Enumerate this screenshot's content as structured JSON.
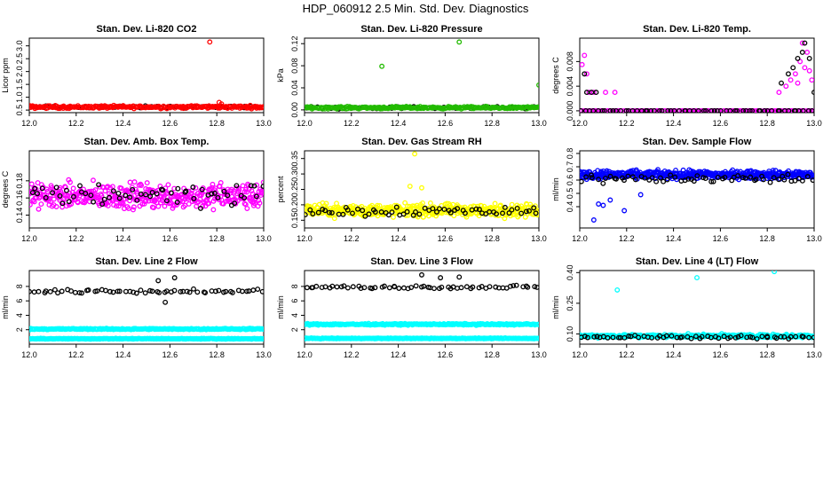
{
  "title": "HDP_060912  2.5 Min. Std. Dev. Diagnostics",
  "colors": {
    "red": "#ff0000",
    "green": "#22bb00",
    "magenta": "#ff00ff",
    "yellow": "#ffff00",
    "blue": "#0000ff",
    "cyan": "#00ffff",
    "black": "#000000"
  },
  "chart_data": [
    {
      "type": "scatter",
      "title": "Stan. Dev. Li-820 CO2",
      "xlabel": "",
      "ylabel": "Licor ppm",
      "xlim": [
        12.0,
        13.0
      ],
      "ylim": [
        0.4,
        3.3
      ],
      "xticks": [
        "12.0",
        "12.2",
        "12.4",
        "12.6",
        "12.8",
        "13.0"
      ],
      "yticks": [
        "0.5",
        "1.0",
        "1.5",
        "2.0",
        "2.5",
        "3.0"
      ],
      "series": [
        {
          "name": "black",
          "color": "black",
          "count": 60,
          "base": 0.62,
          "spread": 0.06
        },
        {
          "name": "red",
          "color": "red",
          "count": 240,
          "base": 0.62,
          "spread": 0.08,
          "extra": [
            [
              12.77,
              3.15
            ],
            [
              12.81,
              0.8
            ],
            [
              12.82,
              0.74
            ]
          ]
        }
      ]
    },
    {
      "type": "scatter",
      "title": "Stan. Dev. Li-820 Pressure",
      "xlabel": "",
      "ylabel": "kPa",
      "xlim": [
        12.0,
        13.0
      ],
      "ylim": [
        -0.005,
        0.13
      ],
      "xticks": [
        "12.0",
        "12.2",
        "12.4",
        "12.6",
        "12.8",
        "13.0"
      ],
      "yticks": [
        "0.00",
        "0.04",
        "0.08",
        "0.12"
      ],
      "series": [
        {
          "name": "black",
          "color": "black",
          "count": 60,
          "base": 0.004,
          "spread": 0.003
        },
        {
          "name": "green",
          "color": "green",
          "count": 240,
          "base": 0.004,
          "spread": 0.003,
          "extra": [
            [
              12.33,
              0.079
            ],
            [
              12.66,
              0.123
            ],
            [
              13.0,
              0.045
            ]
          ]
        }
      ]
    },
    {
      "type": "scatter",
      "title": "Stan. Dev. Li-820 Temp.",
      "xlabel": "",
      "ylabel": "degrees C",
      "xlim": [
        12.0,
        13.0
      ],
      "ylim": [
        -0.0003,
        0.0118
      ],
      "xticks": [
        "12.0",
        "12.2",
        "12.4",
        "12.6",
        "12.8",
        "13.0"
      ],
      "yticks": [
        "0.000",
        "0.004",
        "0.008"
      ],
      "series": [
        {
          "name": "magenta",
          "color": "magenta",
          "count": 140,
          "base": 0.0,
          "spread": 0.0,
          "extra": [
            [
              12.01,
              0.0075
            ],
            [
              12.02,
              0.009
            ],
            [
              12.03,
              0.006
            ],
            [
              12.04,
              0.003
            ],
            [
              12.06,
              0.003
            ],
            [
              12.11,
              0.003
            ],
            [
              12.15,
              0.003
            ],
            [
              12.85,
              0.003
            ],
            [
              12.88,
              0.004
            ],
            [
              12.9,
              0.005
            ],
            [
              12.92,
              0.006
            ],
            [
              12.94,
              0.008
            ],
            [
              12.95,
              0.011
            ],
            [
              12.97,
              0.0095
            ],
            [
              12.96,
              0.007
            ],
            [
              12.98,
              0.0065
            ],
            [
              12.93,
              0.0045
            ],
            [
              12.99,
              0.005
            ]
          ]
        },
        {
          "name": "black",
          "color": "black",
          "count": 60,
          "base": 0.0,
          "spread": 0.0,
          "extra": [
            [
              12.02,
              0.006
            ],
            [
              12.03,
              0.003
            ],
            [
              12.05,
              0.003
            ],
            [
              12.07,
              0.003
            ],
            [
              12.86,
              0.0045
            ],
            [
              12.89,
              0.006
            ],
            [
              12.91,
              0.007
            ],
            [
              12.93,
              0.0085
            ],
            [
              12.95,
              0.0095
            ],
            [
              12.96,
              0.011
            ],
            [
              12.98,
              0.0085
            ],
            [
              13.0,
              0.003
            ]
          ]
        }
      ]
    },
    {
      "type": "scatter",
      "title": "Stan. Dev. Amb. Box Temp.",
      "xlabel": "",
      "ylabel": "degrees C",
      "xlim": [
        12.0,
        13.0
      ],
      "ylim": [
        0.125,
        0.215
      ],
      "xticks": [
        "12.0",
        "12.2",
        "12.4",
        "12.6",
        "12.8",
        "13.0"
      ],
      "yticks": [
        "0.14",
        "0.16",
        "0.18"
      ],
      "series": [
        {
          "name": "magenta",
          "color": "magenta",
          "count": 420,
          "base": 0.162,
          "spread": 0.022
        },
        {
          "name": "black",
          "color": "black",
          "count": 60,
          "base": 0.165,
          "spread": 0.022
        }
      ]
    },
    {
      "type": "scatter",
      "title": "Stan. Dev. Gas Stream RH",
      "xlabel": "",
      "ylabel": "percent",
      "xlim": [
        12.0,
        13.0
      ],
      "ylim": [
        0.125,
        0.375
      ],
      "xticks": [
        "12.0",
        "12.2",
        "12.4",
        "12.6",
        "12.8",
        "13.0"
      ],
      "yticks": [
        "0.15",
        "0.20",
        "0.25",
        "0.30",
        "0.35"
      ],
      "series": [
        {
          "name": "yellow",
          "color": "yellow",
          "count": 420,
          "base": 0.182,
          "spread": 0.03,
          "extra": [
            [
              12.47,
              0.365
            ],
            [
              12.45,
              0.26
            ],
            [
              12.5,
              0.255
            ]
          ]
        },
        {
          "name": "black",
          "color": "black",
          "count": 60,
          "base": 0.18,
          "spread": 0.025
        }
      ]
    },
    {
      "type": "scatter",
      "title": "Stan. Dev. Sample Flow",
      "xlabel": "",
      "ylabel": "ml/min",
      "xlim": [
        12.0,
        13.0
      ],
      "ylim": [
        0.24,
        0.82
      ],
      "xticks": [
        "12.0",
        "12.2",
        "12.4",
        "12.6",
        "12.8",
        "13.0"
      ],
      "yticks": [
        "0.4",
        "0.5",
        "0.6",
        "0.7",
        "0.8"
      ],
      "series": [
        {
          "name": "blue",
          "color": "blue",
          "count": 460,
          "base": 0.64,
          "spread": 0.045,
          "extra": [
            [
              12.06,
              0.3
            ],
            [
              12.1,
              0.41
            ],
            [
              12.13,
              0.45
            ],
            [
              12.19,
              0.37
            ],
            [
              12.26,
              0.49
            ],
            [
              12.08,
              0.42
            ]
          ]
        },
        {
          "name": "black",
          "color": "black",
          "count": 60,
          "base": 0.61,
          "spread": 0.05
        }
      ]
    },
    {
      "type": "scatter",
      "title": "Stan. Dev. Line 2 Flow",
      "xlabel": "",
      "ylabel": "ml/min",
      "xlim": [
        12.0,
        13.0
      ],
      "ylim": [
        0.0,
        10.2
      ],
      "xticks": [
        "12.0",
        "12.2",
        "12.4",
        "12.6",
        "12.8",
        "13.0"
      ],
      "yticks": [
        "2",
        "4",
        "6",
        "8"
      ],
      "series": [
        {
          "name": "cyan-high",
          "color": "cyan",
          "count": 300,
          "base": 2.1,
          "spread": 0.12
        },
        {
          "name": "cyan-low",
          "color": "cyan",
          "count": 300,
          "base": 0.75,
          "spread": 0.08
        },
        {
          "name": "black",
          "color": "black",
          "count": 60,
          "base": 7.3,
          "spread": 0.4,
          "extra": [
            [
              12.58,
              5.8
            ],
            [
              12.62,
              9.2
            ],
            [
              12.55,
              8.8
            ]
          ]
        }
      ]
    },
    {
      "type": "scatter",
      "title": "Stan. Dev. Line 3 Flow",
      "xlabel": "",
      "ylabel": "ml/min",
      "xlim": [
        12.0,
        13.0
      ],
      "ylim": [
        0.0,
        10.2
      ],
      "xticks": [
        "12.0",
        "12.2",
        "12.4",
        "12.6",
        "12.8",
        "13.0"
      ],
      "yticks": [
        "2",
        "4",
        "6",
        "8"
      ],
      "series": [
        {
          "name": "cyan-high",
          "color": "cyan",
          "count": 300,
          "base": 2.75,
          "spread": 0.15
        },
        {
          "name": "cyan-low",
          "color": "cyan",
          "count": 300,
          "base": 0.8,
          "spread": 0.08
        },
        {
          "name": "black",
          "color": "black",
          "count": 60,
          "base": 7.9,
          "spread": 0.35,
          "extra": [
            [
              12.5,
              9.6
            ],
            [
              12.58,
              9.2
            ],
            [
              12.66,
              9.3
            ]
          ]
        }
      ]
    },
    {
      "type": "scatter",
      "title": "Stan. Dev. Line 4 (LT) Flow",
      "xlabel": "",
      "ylabel": "ml/min",
      "xlim": [
        12.0,
        13.0
      ],
      "ylim": [
        0.05,
        0.41
      ],
      "xticks": [
        "12.0",
        "12.2",
        "12.4",
        "12.6",
        "12.8",
        "13.0"
      ],
      "yticks": [
        "0.10",
        "0.25",
        "0.40"
      ],
      "series": [
        {
          "name": "cyan",
          "color": "cyan",
          "count": 420,
          "base": 0.09,
          "spread": 0.012,
          "extra": [
            [
              12.16,
              0.315
            ],
            [
              12.5,
              0.375
            ],
            [
              12.83,
              0.405
            ]
          ]
        },
        {
          "name": "black",
          "color": "black",
          "count": 60,
          "base": 0.085,
          "spread": 0.012
        }
      ]
    }
  ]
}
